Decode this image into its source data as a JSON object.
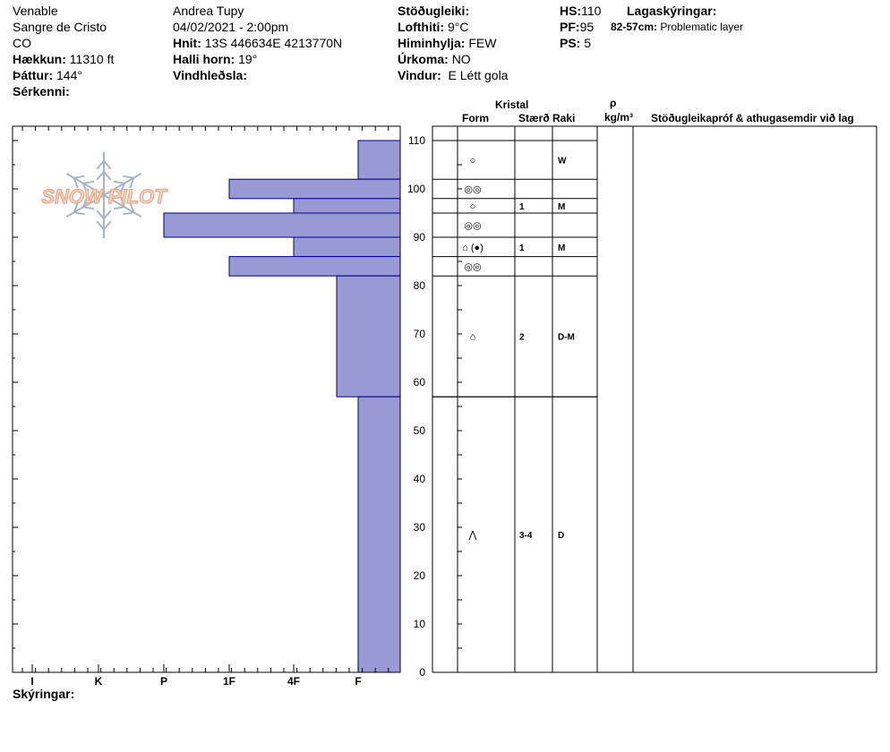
{
  "header": {
    "col1": {
      "location": "Venable",
      "range": "Sangre de Cristo",
      "state": "CO",
      "elevation_label": "Hækkun:",
      "elevation_value": "11310 ft",
      "aspect_label": "Þáttur:",
      "aspect_value": "144°",
      "features_label": "Sérkenni:"
    },
    "col2": {
      "observer": "Andrea Tupy",
      "datetime": "04/02/2021 - 2:00pm",
      "coords_label": "Hnit:",
      "coords_value": "13S 446634E 4213770N",
      "slope_label": "Halli horn:",
      "slope_value": "19°",
      "wind_loading_label": "Vindhleðsla:"
    },
    "col3": {
      "stability_label": "Stöðugleiki:",
      "air_temp_label": "Lofthiti:",
      "air_temp_value": "9°C",
      "sky_label": "Himinhylja:",
      "sky_value": "FEW",
      "precip_label": "Úrkoma:",
      "precip_value": "NO",
      "wind_label": "Vindur:",
      "wind_value": "E Létt gola"
    },
    "col4": {
      "hs_label": "HS:",
      "hs_value": "110",
      "pf_label": "PF:",
      "pf_value": "95",
      "ps_label": "PS:",
      "ps_value": "5",
      "layer_notes_label": "Lagaskýringar:",
      "layer_note_range": "82-57cm:",
      "layer_note_text": "Problematic layer"
    }
  },
  "table_headers": {
    "crystal": "Kristal",
    "form": "Form",
    "size": "Stærð",
    "moisture": "Raki",
    "rho": "ρ",
    "density_unit": "kg/m³",
    "tests": "Stöðugleikapróf & athugasemdir við lag"
  },
  "footer": {
    "notes_label": "Skýringar:"
  },
  "logo_text": "SNOW PILOT",
  "colors": {
    "bar_fill": "#9999d6",
    "bar_stroke": "#000080",
    "logo": "#e8a888",
    "flake": "#a8b4c4"
  },
  "chart_data": {
    "type": "bar",
    "orientation": "horizontal",
    "title": "",
    "xlabel": "",
    "ylabel": "",
    "ylim": [
      0,
      110
    ],
    "y_ticks": [
      "0",
      "10",
      "20",
      "30",
      "40",
      "50",
      "60",
      "70",
      "80",
      "90",
      "100",
      "110"
    ],
    "hardness_scale": [
      "I",
      "K",
      "P",
      "1F",
      "4F",
      "F"
    ],
    "layers": [
      {
        "top": 110,
        "bottom": 102,
        "hardness": "F"
      },
      {
        "top": 102,
        "bottom": 98,
        "hardness": "1F"
      },
      {
        "top": 98,
        "bottom": 95,
        "hardness": "4F"
      },
      {
        "top": 95,
        "bottom": 90,
        "hardness": "P"
      },
      {
        "top": 90,
        "bottom": 86,
        "hardness": "4F"
      },
      {
        "top": 86,
        "bottom": 82,
        "hardness": "1F"
      },
      {
        "top": 82,
        "bottom": 57,
        "hardness": "4F-F"
      },
      {
        "top": 57,
        "bottom": 0,
        "hardness": "F"
      }
    ],
    "grain_rows": [
      {
        "top": 110,
        "bottom": 102,
        "form": "○",
        "size": "",
        "moisture": "W"
      },
      {
        "top": 102,
        "bottom": 98,
        "form": "◎◎",
        "size": "",
        "moisture": ""
      },
      {
        "top": 98,
        "bottom": 95,
        "form": "○",
        "size": "1",
        "moisture": "M"
      },
      {
        "top": 95,
        "bottom": 90,
        "form": "◎◎",
        "size": "",
        "moisture": ""
      },
      {
        "top": 90,
        "bottom": 86,
        "form": "⌂ (●)",
        "size": "1",
        "moisture": "M"
      },
      {
        "top": 86,
        "bottom": 82,
        "form": "◎◎",
        "size": "",
        "moisture": ""
      },
      {
        "top": 82,
        "bottom": 57,
        "form": "⌂",
        "size": "2",
        "moisture": "D-M"
      },
      {
        "top": 57,
        "bottom": 0,
        "form": "⋀",
        "size": "3-4",
        "moisture": "D"
      }
    ]
  }
}
